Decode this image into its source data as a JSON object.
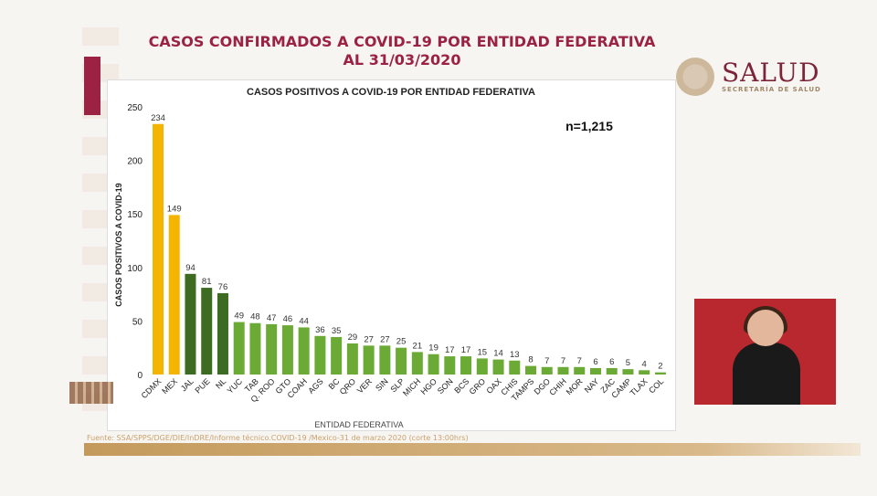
{
  "header": {
    "title_line1": "CASOS CONFIRMADOS A COVID-19 POR ENTIDAD FEDERATIVA",
    "title_line2": "AL 31/03/2020"
  },
  "logo": {
    "name": "SALUD",
    "subtitle": "SECRETARÍA DE SALUD"
  },
  "footer": {
    "source": "Fuente: SSA/SPPS/DGE/DIE/InDRE/Informe técnico.COVID-19 /Mexico-31 de marzo 2020 (corte 13:00hrs)"
  },
  "colors": {
    "title": "#9b2242",
    "top2": "#f5b400",
    "top5": "#3d6b22",
    "rest": "#6aaa35"
  },
  "chart_data": {
    "type": "bar",
    "title": "CASOS POSITIVOS A COVID-19 POR ENTIDAD FEDERATIVA",
    "annotation": "n=1,215",
    "xlabel": "ENTIDAD FEDERATIVA",
    "ylabel": "CASOS POSITIVOS A COVID-19",
    "ylim": [
      0,
      250
    ],
    "yticks": [
      0,
      50,
      100,
      150,
      200,
      250
    ],
    "grid": false,
    "categories": [
      "CDMX",
      "MEX",
      "JAL",
      "PUE",
      "NL",
      "YUC",
      "TAB",
      "Q. ROO",
      "GTO",
      "COAH",
      "AGS",
      "BC",
      "QRO",
      "VER",
      "SIN",
      "SLP",
      "MICH",
      "HGO",
      "SON",
      "BCS",
      "GRO",
      "OAX",
      "CHIS",
      "TAMPS",
      "DGO",
      "CHIH",
      "MOR",
      "NAY",
      "ZAC",
      "CAMP",
      "TLAX",
      "COL"
    ],
    "values": [
      234,
      149,
      94,
      81,
      76,
      49,
      48,
      47,
      46,
      44,
      36,
      35,
      29,
      27,
      27,
      25,
      21,
      19,
      17,
      17,
      15,
      14,
      13,
      8,
      7,
      7,
      7,
      6,
      6,
      5,
      4,
      2
    ],
    "bar_colors": [
      "#f5b400",
      "#f5b400",
      "#3d6b22",
      "#3d6b22",
      "#3d6b22",
      "#6aaa35",
      "#6aaa35",
      "#6aaa35",
      "#6aaa35",
      "#6aaa35",
      "#6aaa35",
      "#6aaa35",
      "#6aaa35",
      "#6aaa35",
      "#6aaa35",
      "#6aaa35",
      "#6aaa35",
      "#6aaa35",
      "#6aaa35",
      "#6aaa35",
      "#6aaa35",
      "#6aaa35",
      "#6aaa35",
      "#6aaa35",
      "#6aaa35",
      "#6aaa35",
      "#6aaa35",
      "#6aaa35",
      "#6aaa35",
      "#6aaa35",
      "#6aaa35",
      "#6aaa35"
    ]
  }
}
